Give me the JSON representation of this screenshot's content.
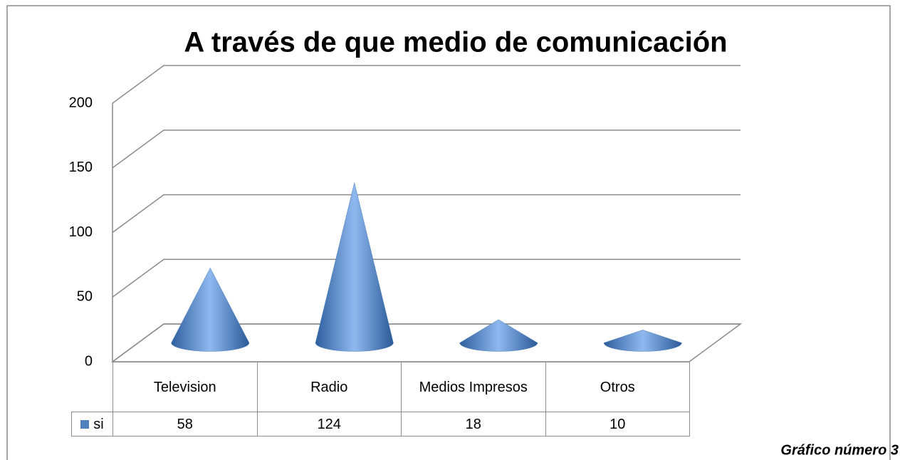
{
  "chart_data": {
    "type": "cone3d",
    "title": "A través de que medio de comunicación",
    "categories": [
      "Television",
      "Radio",
      "Medios Impresos",
      "Otros"
    ],
    "series": [
      {
        "name": "si",
        "color": "#4f81bd",
        "values": [
          58,
          124,
          18,
          10
        ]
      }
    ],
    "ylim": [
      0,
      200
    ],
    "yticks": [
      0,
      50,
      100,
      150,
      200
    ],
    "grid": true,
    "caption": "Gráfico número 3"
  }
}
